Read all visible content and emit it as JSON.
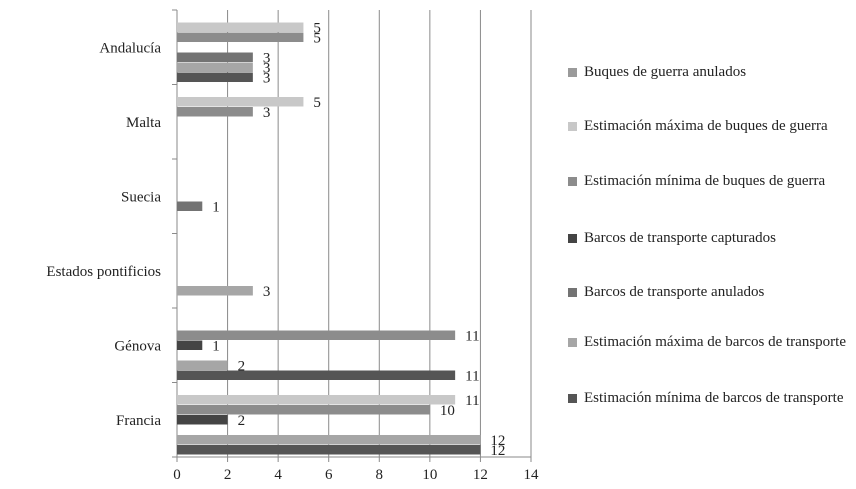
{
  "chart_data": {
    "type": "bar",
    "orientation": "horizontal",
    "categories": [
      "Andalucía",
      "Malta",
      "Suecia",
      "Estados pontificios",
      "Génova",
      "Francia"
    ],
    "xlim": [
      0,
      14
    ],
    "xticks": [
      0,
      2,
      4,
      6,
      8,
      10,
      12,
      14
    ],
    "grid": "vertical",
    "legend_position": "right",
    "series": [
      {
        "name": "Buques de guerra anulados",
        "color": "#9a9a9a",
        "values": [
          null,
          null,
          null,
          null,
          null,
          null
        ]
      },
      {
        "name": "Estimación máxima de buques de guerra",
        "color": "#c8c8c8",
        "values": [
          5,
          5,
          null,
          null,
          null,
          11
        ]
      },
      {
        "name": "Estimación mínima de buques de guerra",
        "color": "#8c8c8c",
        "values": [
          5,
          3,
          null,
          null,
          11,
          10
        ]
      },
      {
        "name": "Barcos de transporte capturados",
        "color": "#444444",
        "values": [
          null,
          null,
          null,
          null,
          1,
          2
        ]
      },
      {
        "name": "Barcos de transporte anulados",
        "color": "#737373",
        "values": [
          3,
          null,
          1,
          null,
          null,
          null
        ]
      },
      {
        "name": "Estimación máxima de barcos de transporte",
        "color": "#a6a6a6",
        "values": [
          3,
          null,
          null,
          3,
          2,
          12
        ]
      },
      {
        "name": "Estimación mínima de barcos de transporte",
        "color": "#555555",
        "values": [
          3,
          null,
          null,
          null,
          11,
          12
        ]
      }
    ]
  }
}
